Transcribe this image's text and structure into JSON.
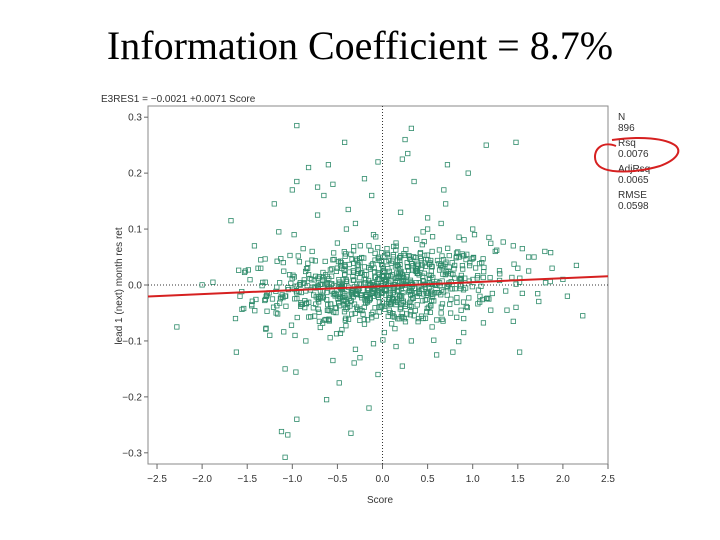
{
  "slide": {
    "title": "Information Coefficient = 8.7%"
  },
  "chart_data": {
    "type": "scatter",
    "equation": "E3RES1 = −0.0021 +0.0071 Score",
    "xlabel": "Score",
    "ylabel": "lead 1 (next) month res ret",
    "xlim": [
      -2.6,
      2.5
    ],
    "ylim": [
      -0.32,
      0.32
    ],
    "x_ticks": [
      -2.5,
      -2.0,
      -1.5,
      -1.0,
      -0.5,
      0.0,
      0.5,
      1.0,
      1.5,
      2.0,
      2.5
    ],
    "x_tick_labels": [
      "−2.5",
      "−2.0",
      "−1.5",
      "−1.0",
      "−0.5",
      "0.0",
      "0.5",
      "1.0",
      "1.5",
      "2.0",
      "2.5"
    ],
    "y_ticks": [
      0.3,
      0.2,
      0.1,
      0.0,
      -0.1,
      -0.2,
      -0.3
    ],
    "y_tick_labels": [
      "0.3",
      "0.2",
      "0.1",
      "0.0",
      "−0.1",
      "−0.2",
      "−0.3"
    ],
    "fit": {
      "intercept": -0.0021,
      "slope": 0.0071,
      "color": "#d62020"
    },
    "reference_lines": {
      "x": 0.0,
      "y": 0.0
    },
    "marker_color": "#2e8b6a",
    "grid": false,
    "stats": [
      {
        "label": "N",
        "value": "896"
      },
      {
        "label": "Rsq",
        "value": "0.0076"
      },
      {
        "label": "AdjRsq",
        "value": "0.0065"
      },
      {
        "label": "RMSE",
        "value": "0.0598"
      }
    ],
    "highlight": {
      "target": "Rsq",
      "color": "#d62020"
    },
    "n_points": 896,
    "rmse": 0.0598,
    "points": [
      [
        -2.28,
        -0.075
      ],
      [
        -1.68,
        0.115
      ],
      [
        -1.58,
        -0.02
      ],
      [
        -1.88,
        0.005
      ],
      [
        -1.52,
        0.025
      ],
      [
        -1.62,
        -0.12
      ],
      [
        -1.63,
        -0.06
      ],
      [
        -1.35,
        0.045
      ],
      [
        -1.42,
        0.07
      ],
      [
        -1.45,
        -0.035
      ],
      [
        -1.2,
        0.145
      ],
      [
        -1.15,
        0.095
      ],
      [
        -1.1,
        0.04
      ],
      [
        -1.05,
        -0.005
      ],
      [
        -1.18,
        -0.05
      ],
      [
        -1.08,
        -0.15
      ],
      [
        -1.0,
        0.17
      ],
      [
        -0.95,
        0.185
      ],
      [
        -0.95,
        -0.24
      ],
      [
        -1.12,
        -0.262
      ],
      [
        -1.08,
        -0.308
      ],
      [
        -1.05,
        -0.268
      ],
      [
        -0.95,
        0.285
      ],
      [
        -0.82,
        0.21
      ],
      [
        -0.72,
        0.175
      ],
      [
        -0.72,
        0.125
      ],
      [
        -0.6,
        0.215
      ],
      [
        -0.65,
        0.16
      ],
      [
        -0.55,
        0.18
      ],
      [
        -0.5,
        0.075
      ],
      [
        -0.38,
        0.135
      ],
      [
        -0.42,
        0.255
      ],
      [
        -0.2,
        0.19
      ],
      [
        -0.62,
        -0.205
      ],
      [
        -0.48,
        -0.175
      ],
      [
        -0.35,
        -0.265
      ],
      [
        -0.25,
        -0.13
      ],
      [
        -0.15,
        -0.22
      ],
      [
        -0.3,
        -0.115
      ],
      [
        -0.05,
        -0.16
      ],
      [
        -0.1,
        0.09
      ],
      [
        -0.3,
        0.11
      ],
      [
        -0.12,
        0.16
      ],
      [
        -0.05,
        0.22
      ],
      [
        0.25,
        0.26
      ],
      [
        0.28,
        0.235
      ],
      [
        0.32,
        0.28
      ],
      [
        0.22,
        0.225
      ],
      [
        0.35,
        0.185
      ],
      [
        0.45,
        0.095
      ],
      [
        0.5,
        0.1
      ],
      [
        0.65,
        0.11
      ],
      [
        0.7,
        0.145
      ],
      [
        0.85,
        0.05
      ],
      [
        0.95,
        0.2
      ],
      [
        0.72,
        0.215
      ],
      [
        0.68,
        0.17
      ],
      [
        1.0,
        0.1
      ],
      [
        1.02,
        0.09
      ],
      [
        1.18,
        0.085
      ],
      [
        1.25,
        0.06
      ],
      [
        1.45,
        0.07
      ],
      [
        1.55,
        0.065
      ],
      [
        1.62,
        0.05
      ],
      [
        1.68,
        0.05
      ],
      [
        1.5,
        0.03
      ],
      [
        1.52,
        0.005
      ],
      [
        1.55,
        -0.015
      ],
      [
        1.62,
        0.025
      ],
      [
        1.48,
        -0.04
      ],
      [
        1.45,
        -0.065
      ],
      [
        1.52,
        -0.12
      ],
      [
        1.38,
        -0.045
      ],
      [
        1.15,
        0.25
      ],
      [
        1.48,
        0.255
      ],
      [
        0.9,
        -0.085
      ],
      [
        0.78,
        -0.12
      ],
      [
        0.6,
        -0.125
      ],
      [
        0.55,
        -0.075
      ],
      [
        0.4,
        -0.06
      ],
      [
        0.32,
        -0.1
      ],
      [
        0.22,
        -0.145
      ],
      [
        0.15,
        -0.11
      ],
      [
        0.1,
        -0.03
      ],
      [
        2.05,
        -0.02
      ],
      [
        2.22,
        -0.055
      ],
      [
        2.15,
        0.035
      ],
      [
        2.0,
        0.01
      ],
      [
        1.88,
        0.03
      ],
      [
        1.8,
        0.06
      ],
      [
        -0.98,
        0.09
      ],
      [
        -1.25,
        -0.09
      ],
      [
        -1.38,
        0.03
      ],
      [
        -0.88,
        0.065
      ],
      [
        -0.78,
        0.06
      ],
      [
        -0.7,
        0.015
      ],
      [
        -0.55,
        0.045
      ],
      [
        -0.45,
        0.03
      ],
      [
        -0.35,
        0.055
      ],
      [
        -0.25,
        0.04
      ],
      [
        -0.15,
        0.07
      ],
      [
        0.05,
        0.065
      ],
      [
        0.15,
        0.075
      ],
      [
        0.3,
        0.05
      ],
      [
        0.55,
        0.06
      ],
      [
        0.8,
        0.035
      ],
      [
        1.1,
        0.04
      ],
      [
        1.3,
        0.02
      ],
      [
        -0.9,
        -0.035
      ],
      [
        -0.7,
        -0.065
      ],
      [
        -0.6,
        -0.045
      ],
      [
        -0.45,
        -0.08
      ],
      [
        -0.2,
        -0.07
      ],
      [
        0.02,
        -0.085
      ],
      [
        0.35,
        -0.055
      ],
      [
        0.65,
        -0.05
      ],
      [
        0.9,
        -0.06
      ],
      [
        1.2,
        -0.045
      ],
      [
        -1.3,
        0.005
      ],
      [
        -1.22,
        -0.025
      ],
      [
        -0.85,
        -0.1
      ],
      [
        -0.55,
        -0.135
      ],
      [
        -0.1,
        -0.105
      ],
      [
        0.5,
        0.12
      ],
      [
        -0.4,
        0.1
      ],
      [
        0.2,
        0.13
      ]
    ]
  }
}
